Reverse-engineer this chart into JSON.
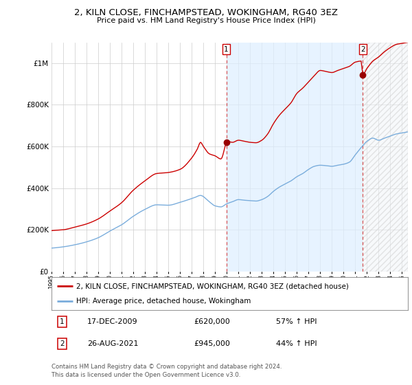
{
  "title": "2, KILN CLOSE, FINCHAMPSTEAD, WOKINGHAM, RG40 3EZ",
  "subtitle": "Price paid vs. HM Land Registry's House Price Index (HPI)",
  "legend_line1": "2, KILN CLOSE, FINCHAMPSTEAD, WOKINGHAM, RG40 3EZ (detached house)",
  "legend_line2": "HPI: Average price, detached house, Wokingham",
  "footer": "Contains HM Land Registry data © Crown copyright and database right 2024.\nThis data is licensed under the Open Government Licence v3.0.",
  "sale1_date": "17-DEC-2009",
  "sale1_price": "£620,000",
  "sale1_hpi": "57% ↑ HPI",
  "sale1_year": 2009.958,
  "sale1_val": 620000,
  "sale2_date": "26-AUG-2021",
  "sale2_price": "£945,000",
  "sale2_hpi": "44% ↑ HPI",
  "sale2_year": 2021.646,
  "sale2_val": 945000,
  "red_color": "#cc0000",
  "blue_color": "#7aaddc",
  "shade_color": "#ddeeff",
  "grid_color": "#cccccc",
  "background_color": "#ffffff",
  "ylim": [
    0,
    1100000
  ],
  "yticks": [
    0,
    200000,
    400000,
    600000,
    800000,
    1000000
  ],
  "ytick_labels": [
    "£0",
    "£200K",
    "£400K",
    "£600K",
    "£800K",
    "£1M"
  ],
  "xlim_start": 1995.0,
  "xlim_end": 2025.5
}
